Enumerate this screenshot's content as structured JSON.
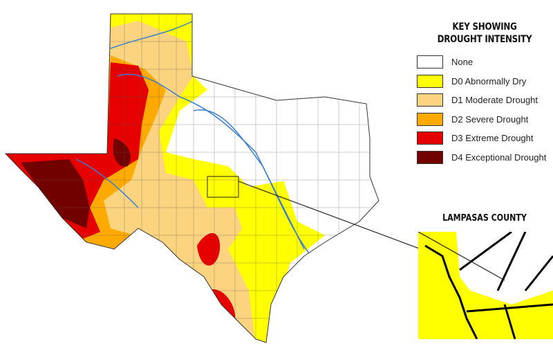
{
  "legend": {
    "title": "KEY SHOWING DROUGHT INTENSITY",
    "items": [
      {
        "label": "None",
        "color": "#ffffff"
      },
      {
        "label": "D0 Abnormally Dry",
        "color": "#ffff00"
      },
      {
        "label": "D1 Moderate Drought",
        "color": "#fcd37f"
      },
      {
        "label": "D2 Severe Drought",
        "color": "#ffaa00"
      },
      {
        "label": "D3 Extreme Drought",
        "color": "#e60000"
      },
      {
        "label": "D4 Exceptional Drought",
        "color": "#730000"
      }
    ]
  },
  "inset": {
    "title": "LAMPASAS COUNTY"
  }
}
